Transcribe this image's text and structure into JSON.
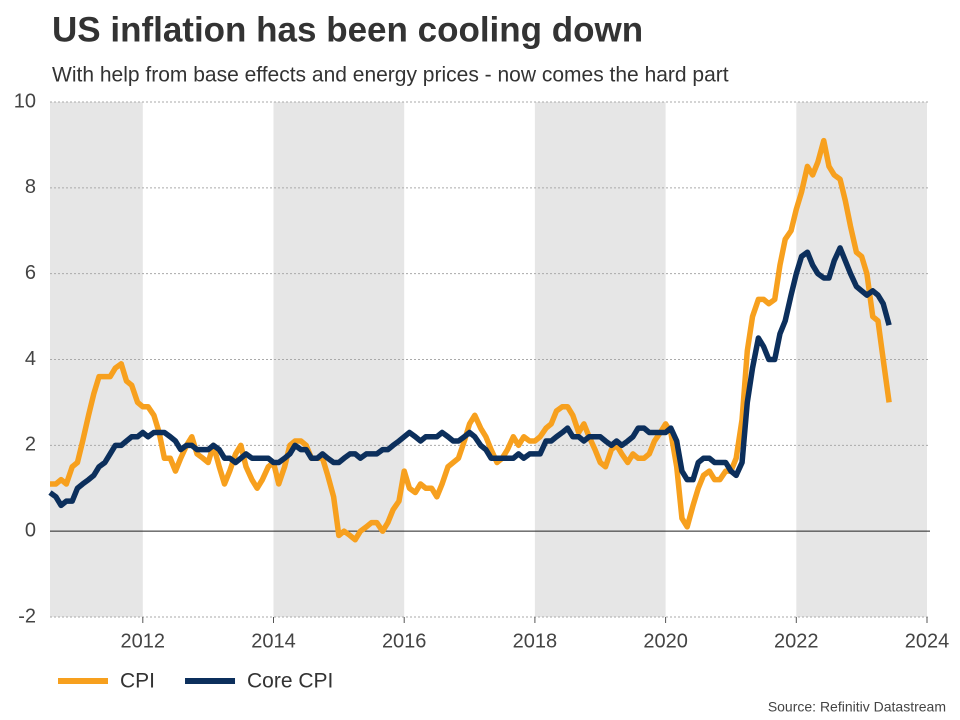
{
  "chart_data": {
    "type": "line",
    "title": "US inflation has been cooling down",
    "subtitle": "With help from base effects and energy prices - now comes the hard part",
    "source": "Source: Refinitiv Datastream",
    "x": [
      2010.58,
      2010.67,
      2010.75,
      2010.83,
      2010.92,
      2011,
      2011.08,
      2011.17,
      2011.25,
      2011.33,
      2011.42,
      2011.5,
      2011.58,
      2011.67,
      2011.75,
      2011.83,
      2011.92,
      2012,
      2012.08,
      2012.17,
      2012.25,
      2012.33,
      2012.42,
      2012.5,
      2012.58,
      2012.67,
      2012.75,
      2012.83,
      2012.92,
      2013,
      2013.08,
      2013.17,
      2013.25,
      2013.33,
      2013.42,
      2013.5,
      2013.58,
      2013.67,
      2013.75,
      2013.83,
      2013.92,
      2014,
      2014.08,
      2014.17,
      2014.25,
      2014.33,
      2014.42,
      2014.5,
      2014.58,
      2014.67,
      2014.75,
      2014.83,
      2014.92,
      2015,
      2015.08,
      2015.17,
      2015.25,
      2015.33,
      2015.42,
      2015.5,
      2015.58,
      2015.67,
      2015.75,
      2015.83,
      2015.92,
      2016,
      2016.08,
      2016.17,
      2016.25,
      2016.33,
      2016.42,
      2016.5,
      2016.58,
      2016.67,
      2016.75,
      2016.83,
      2016.92,
      2017,
      2017.08,
      2017.17,
      2017.25,
      2017.33,
      2017.42,
      2017.5,
      2017.58,
      2017.67,
      2017.75,
      2017.83,
      2017.92,
      2018,
      2018.08,
      2018.17,
      2018.25,
      2018.33,
      2018.42,
      2018.5,
      2018.58,
      2018.67,
      2018.75,
      2018.83,
      2018.92,
      2019,
      2019.08,
      2019.17,
      2019.25,
      2019.33,
      2019.42,
      2019.5,
      2019.58,
      2019.67,
      2019.75,
      2019.83,
      2019.92,
      2020,
      2020.08,
      2020.17,
      2020.25,
      2020.33,
      2020.42,
      2020.5,
      2020.58,
      2020.67,
      2020.75,
      2020.83,
      2020.92,
      2021,
      2021.08,
      2021.17,
      2021.25,
      2021.33,
      2021.42,
      2021.5,
      2021.58,
      2021.67,
      2021.75,
      2021.83,
      2021.92,
      2022,
      2022.08,
      2022.17,
      2022.25,
      2022.33,
      2022.42,
      2022.5,
      2022.58,
      2022.67,
      2022.75,
      2022.83,
      2022.92,
      2023,
      2023.08,
      2023.17,
      2023.25,
      2023.33,
      2023.42
    ],
    "series": [
      {
        "name": "CPI",
        "color": "#f7a01e",
        "values": [
          1.1,
          1.1,
          1.2,
          1.1,
          1.5,
          1.6,
          2.1,
          2.7,
          3.2,
          3.6,
          3.6,
          3.6,
          3.8,
          3.9,
          3.5,
          3.4,
          3.0,
          2.9,
          2.9,
          2.7,
          2.3,
          1.7,
          1.7,
          1.4,
          1.7,
          2.0,
          2.2,
          1.8,
          1.7,
          1.6,
          2.0,
          1.5,
          1.1,
          1.4,
          1.8,
          2.0,
          1.5,
          1.2,
          1.0,
          1.2,
          1.5,
          1.6,
          1.1,
          1.5,
          2.0,
          2.1,
          2.1,
          2.0,
          1.7,
          1.7,
          1.7,
          1.3,
          0.8,
          -0.1,
          0.0,
          -0.1,
          -0.2,
          0.0,
          0.1,
          0.2,
          0.2,
          0.0,
          0.2,
          0.5,
          0.7,
          1.4,
          1.0,
          0.9,
          1.1,
          1.0,
          1.0,
          0.8,
          1.1,
          1.5,
          1.6,
          1.7,
          2.1,
          2.5,
          2.7,
          2.4,
          2.2,
          1.9,
          1.6,
          1.7,
          1.9,
          2.2,
          2.0,
          2.2,
          2.1,
          2.1,
          2.2,
          2.4,
          2.5,
          2.8,
          2.9,
          2.9,
          2.7,
          2.3,
          2.5,
          2.2,
          1.9,
          1.6,
          1.5,
          1.9,
          2.0,
          1.8,
          1.6,
          1.8,
          1.7,
          1.7,
          1.8,
          2.1,
          2.3,
          2.5,
          2.3,
          1.5,
          0.3,
          0.1,
          0.6,
          1.0,
          1.3,
          1.4,
          1.2,
          1.2,
          1.4,
          1.4,
          1.7,
          2.6,
          4.2,
          5.0,
          5.4,
          5.4,
          5.3,
          5.4,
          6.2,
          6.8,
          7.0,
          7.5,
          7.9,
          8.5,
          8.3,
          8.6,
          9.1,
          8.5,
          8.3,
          8.2,
          7.7,
          7.1,
          6.5,
          6.4,
          6.0,
          5.0,
          4.9,
          4.0,
          3.0
        ]
      },
      {
        "name": "Core CPI",
        "color": "#0c2f5c",
        "values": [
          0.9,
          0.8,
          0.6,
          0.7,
          0.7,
          1.0,
          1.1,
          1.2,
          1.3,
          1.5,
          1.6,
          1.8,
          2.0,
          2.0,
          2.1,
          2.2,
          2.2,
          2.3,
          2.2,
          2.3,
          2.3,
          2.3,
          2.2,
          2.1,
          1.9,
          2.0,
          2.0,
          1.9,
          1.9,
          1.9,
          2.0,
          1.9,
          1.7,
          1.7,
          1.6,
          1.7,
          1.8,
          1.7,
          1.7,
          1.7,
          1.7,
          1.6,
          1.6,
          1.7,
          1.8,
          2.0,
          1.9,
          1.9,
          1.7,
          1.7,
          1.8,
          1.7,
          1.6,
          1.6,
          1.7,
          1.8,
          1.8,
          1.7,
          1.8,
          1.8,
          1.8,
          1.9,
          1.9,
          2.0,
          2.1,
          2.2,
          2.3,
          2.2,
          2.1,
          2.2,
          2.2,
          2.2,
          2.3,
          2.2,
          2.1,
          2.1,
          2.2,
          2.3,
          2.2,
          2.0,
          1.9,
          1.7,
          1.7,
          1.7,
          1.7,
          1.7,
          1.8,
          1.7,
          1.8,
          1.8,
          1.8,
          2.1,
          2.1,
          2.2,
          2.3,
          2.4,
          2.2,
          2.2,
          2.1,
          2.2,
          2.2,
          2.2,
          2.1,
          2.0,
          2.1,
          2.0,
          2.1,
          2.2,
          2.4,
          2.4,
          2.3,
          2.3,
          2.3,
          2.3,
          2.4,
          2.1,
          1.4,
          1.2,
          1.2,
          1.6,
          1.7,
          1.7,
          1.6,
          1.6,
          1.6,
          1.4,
          1.3,
          1.6,
          3.0,
          3.8,
          4.5,
          4.3,
          4.0,
          4.0,
          4.6,
          4.9,
          5.5,
          6.0,
          6.4,
          6.5,
          6.2,
          6.0,
          5.9,
          5.9,
          6.3,
          6.6,
          6.3,
          6.0,
          5.7,
          5.6,
          5.5,
          5.6,
          5.5,
          5.3,
          4.8
        ]
      }
    ],
    "xlim": [
      2010.58,
      2024
    ],
    "xticks": [
      2012,
      2014,
      2016,
      2018,
      2020,
      2022,
      2024
    ],
    "ylim": [
      -2,
      10
    ],
    "yticks": [
      -2,
      0,
      2,
      4,
      6,
      8,
      10
    ],
    "grid": true,
    "legend": "bottom-left"
  }
}
